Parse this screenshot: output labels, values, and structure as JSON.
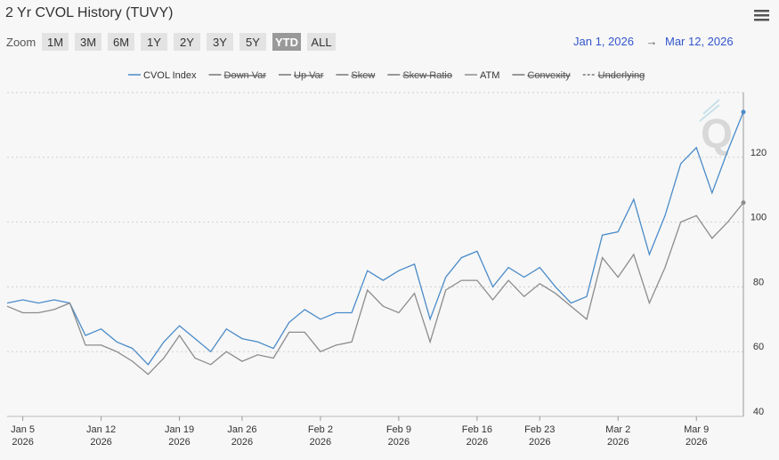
{
  "chart_data": {
    "type": "line",
    "title": "2 Yr CVOL History (TUVY)",
    "zoom_label": "Zoom",
    "zoom_buttons": [
      "1M",
      "3M",
      "6M",
      "1Y",
      "2Y",
      "3Y",
      "5Y",
      "YTD",
      "ALL"
    ],
    "zoom_selected": "YTD",
    "range_from": "Jan 1, 2026",
    "range_arrow": "→",
    "range_to": "Mar 12, 2026",
    "categories": [
      null,
      "Jan 5 2026",
      null,
      null,
      null,
      null,
      "Jan 12 2026",
      null,
      null,
      null,
      null,
      "Jan 19 2026",
      null,
      null,
      null,
      "Jan 26 2026",
      null,
      null,
      null,
      null,
      "Feb 2 2026",
      null,
      null,
      null,
      null,
      "Feb 9 2026",
      null,
      null,
      null,
      null,
      "Feb 16 2026",
      null,
      null,
      null,
      "Feb 23 2026",
      null,
      null,
      null,
      null,
      "Mar 2 2026",
      null,
      null,
      null,
      null,
      "Mar 9 2026",
      null,
      null,
      null
    ],
    "series": [
      {
        "name": "CVOL Index",
        "color": "#4a8bc9",
        "visible": true,
        "values": [
          75,
          76,
          75,
          76,
          75,
          65,
          67,
          63,
          61,
          56,
          63,
          68,
          64,
          60,
          67,
          64,
          63,
          61,
          69,
          73,
          70,
          72,
          72,
          85,
          82,
          85,
          87,
          70,
          83,
          89,
          91,
          80,
          86,
          83,
          86,
          80,
          75,
          77,
          96,
          97,
          107,
          90,
          102,
          118,
          123,
          109,
          122,
          134
        ]
      },
      {
        "name": "Down Var",
        "color": "#888888",
        "visible": false
      },
      {
        "name": "Up Var",
        "color": "#888888",
        "visible": false
      },
      {
        "name": "Skew",
        "color": "#888888",
        "visible": false
      },
      {
        "name": "Skew Ratio",
        "color": "#888888",
        "visible": false
      },
      {
        "name": "ATM",
        "color": "#8c8c8c",
        "visible": true,
        "values": [
          74,
          72,
          72,
          73,
          75,
          62,
          62,
          60,
          57,
          53,
          58,
          65,
          58,
          56,
          60,
          57,
          59,
          58,
          66,
          66,
          60,
          62,
          63,
          79,
          74,
          72,
          78,
          63,
          79,
          82,
          82,
          76,
          82,
          77,
          81,
          78,
          74,
          70,
          89,
          83,
          90,
          75,
          86,
          100,
          102,
          95,
          100,
          106
        ]
      },
      {
        "name": "Convexity",
        "color": "#888888",
        "visible": false
      },
      {
        "name": "Underlying",
        "color": "#888888",
        "visible": false,
        "dashed": true
      }
    ],
    "ylim": [
      40,
      140
    ],
    "yticks": [
      40,
      60,
      80,
      100,
      120
    ],
    "grid": true
  }
}
